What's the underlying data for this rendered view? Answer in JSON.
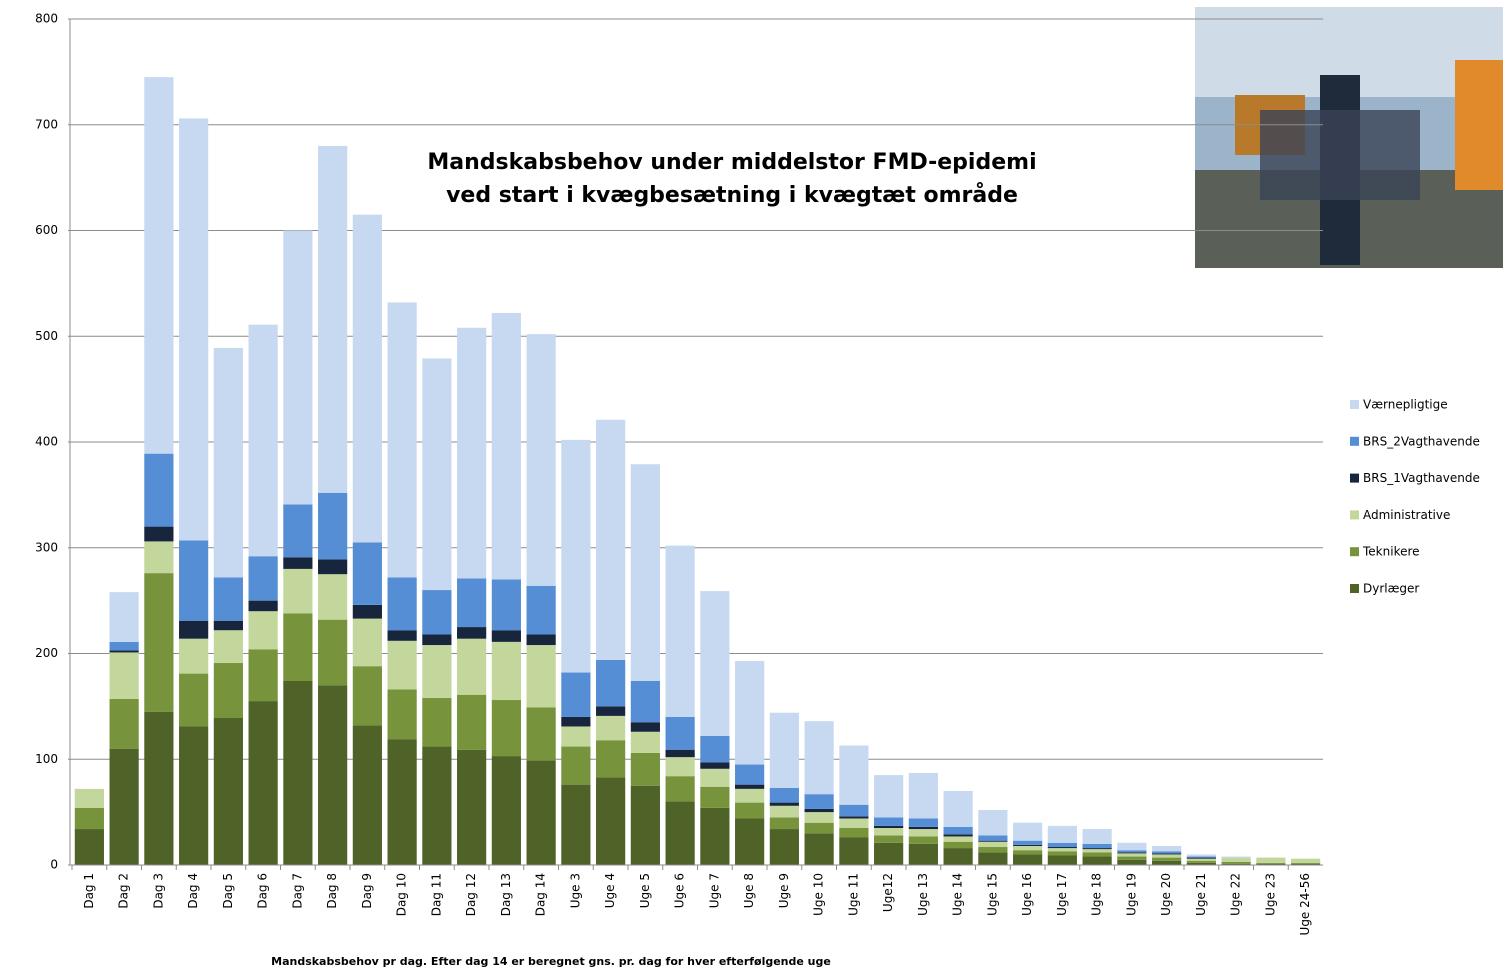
{
  "chart_data": {
    "type": "bar",
    "stacked": true,
    "title": "Mandskabsbehov under middelstor FMD-epidemi\nved start i kvægbesætning i kvægtæt område",
    "x_label": "Mandskabsbehov pr dag. Efter dag 14 er beregnet gns. pr. dag for hver efterfølgende uge",
    "categories": [
      "Dag 1",
      "Dag 2",
      "Dag 3",
      "Dag 4",
      "Dag 5",
      "Dag 6",
      "Dag 7",
      "Dag 8",
      "Dag 9",
      "Dag 10",
      "Dag 11",
      "Dag 12",
      "Dag 13",
      "Dag 14",
      "Uge 3",
      "Uge 4",
      "Uge 5",
      "Uge 6",
      "Uge 7",
      "Uge 8",
      "Uge 9",
      "Uge 10",
      "Uge 11",
      "Uge12",
      "Uge 13",
      "Uge 14",
      "Uge 15",
      "Uge 16",
      "Uge 17",
      "Uge 18",
      "Uge 19",
      "Uge 20",
      "Uge 21",
      "Uge 22",
      "Uge 23",
      "Uge 24-56"
    ],
    "series": [
      {
        "name": "Dyrlæger",
        "color": "#4f6228",
        "values": [
          34,
          110,
          145,
          131,
          139,
          155,
          174,
          170,
          132,
          119,
          112,
          109,
          103,
          99,
          76,
          83,
          75,
          60,
          54,
          44,
          34,
          30,
          26,
          21,
          20,
          16,
          12,
          10,
          9,
          8,
          5,
          4,
          2,
          1,
          1,
          1
        ]
      },
      {
        "name": "Teknikere",
        "color": "#77933c",
        "values": [
          20,
          47,
          131,
          50,
          52,
          49,
          64,
          62,
          56,
          47,
          46,
          52,
          53,
          50,
          36,
          35,
          31,
          24,
          20,
          15,
          11,
          10,
          9,
          7,
          7,
          6,
          5,
          4,
          4,
          4,
          3,
          3,
          2,
          2,
          1,
          1
        ]
      },
      {
        "name": "Administrative",
        "color": "#c3d69b",
        "values": [
          18,
          44,
          30,
          33,
          31,
          36,
          42,
          43,
          45,
          46,
          50,
          53,
          55,
          59,
          19,
          23,
          20,
          18,
          17,
          13,
          11,
          10,
          9,
          7,
          7,
          5,
          5,
          4,
          3,
          3,
          3,
          3,
          2,
          4,
          5,
          4
        ]
      },
      {
        "name": "BRS_1Vagthavende",
        "color": "#17253d",
        "values": [
          0,
          2,
          14,
          17,
          9,
          10,
          11,
          14,
          13,
          10,
          10,
          11,
          11,
          10,
          9,
          9,
          9,
          7,
          6,
          4,
          3,
          3,
          2,
          2,
          2,
          2,
          1,
          1,
          1,
          1,
          1,
          1,
          1,
          0,
          0,
          0
        ]
      },
      {
        "name": "BRS_2Vagthavende",
        "color": "#558ed5",
        "values": [
          0,
          8,
          69,
          76,
          41,
          42,
          50,
          63,
          59,
          50,
          42,
          46,
          48,
          46,
          42,
          44,
          39,
          31,
          25,
          19,
          14,
          14,
          11,
          8,
          8,
          7,
          5,
          4,
          4,
          4,
          2,
          2,
          1,
          0,
          0,
          0
        ]
      },
      {
        "name": "Værnepligtige",
        "color": "#c6d9f1",
        "values": [
          0,
          47,
          356,
          399,
          217,
          219,
          259,
          328,
          310,
          260,
          219,
          237,
          252,
          238,
          220,
          227,
          205,
          162,
          137,
          98,
          71,
          69,
          56,
          40,
          43,
          34,
          24,
          17,
          16,
          14,
          7,
          5,
          2,
          1,
          0,
          0
        ]
      }
    ],
    "ylim": [
      0,
      800
    ],
    "yticks": [
      0,
      100,
      200,
      300,
      400,
      500,
      600,
      700,
      800
    ],
    "grid": true,
    "legend": "right"
  }
}
